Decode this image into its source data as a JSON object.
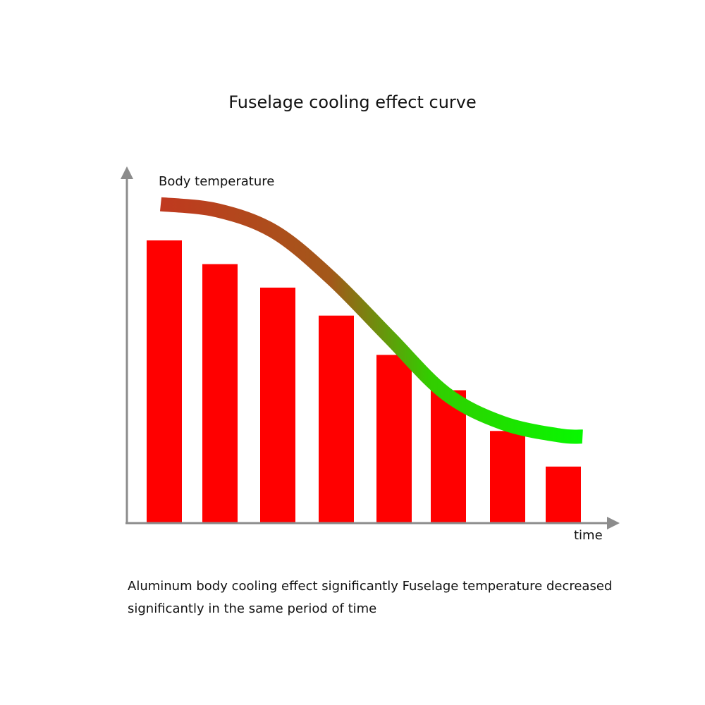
{
  "chart_data": {
    "type": "bar",
    "title": "Fuselage cooling effect curve",
    "ylabel": "Body temperature",
    "xlabel": "time",
    "categories": [
      "",
      "",
      "",
      "",
      "",
      "",
      "",
      ""
    ],
    "values": [
      100,
      91.6,
      83.3,
      73.4,
      59.5,
      47,
      32.6,
      20
    ],
    "ylim": [
      0,
      115
    ],
    "curve": {
      "type": "line",
      "x": [
        0,
        1,
        2,
        3,
        4,
        5,
        6,
        7,
        7.4
      ],
      "y": [
        112.8,
        110.6,
        103,
        86.5,
        66,
        45.8,
        35.4,
        31,
        30.6
      ],
      "gradient_colors": [
        "#c0391f",
        "#a3581a",
        "#33cc00",
        "#00ff00"
      ]
    },
    "colors": {
      "bar": "#ff0000",
      "axis": "#8c8c8c"
    },
    "grid": false,
    "caption": {
      "line1": "Aluminum body cooling effect significantly Fuselage temperature decreased",
      "line2": "significantly in the same period of time"
    }
  }
}
